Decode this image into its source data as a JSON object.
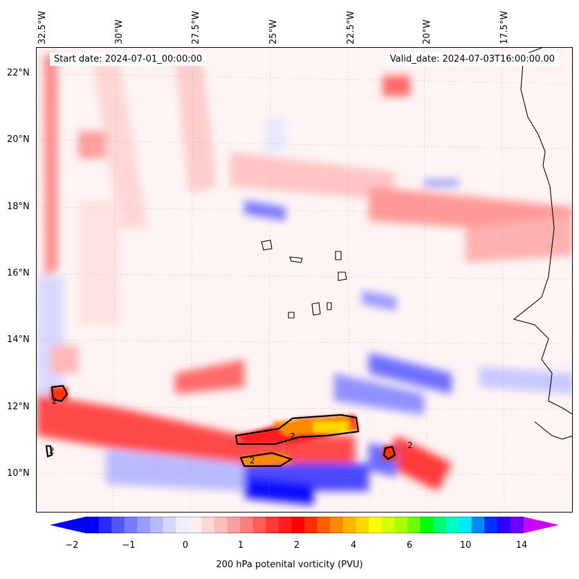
{
  "header": {
    "start_date": "Start date: 2024-07-01_00:00:00",
    "valid_date": "Valid_date: 2024-07-03T16:00:00.00"
  },
  "axes": {
    "lon_labels": [
      "32.5°W",
      "30°W",
      "27.5°W",
      "25°W",
      "22.5°W",
      "20°W",
      "17.5°W"
    ],
    "lat_labels": [
      "22°N",
      "20°N",
      "18°N",
      "16°N",
      "14°N",
      "12°N",
      "10°N"
    ]
  },
  "colorbar": {
    "label": "200 hPa potenital vorticity (PVU)",
    "ticks": [
      "−2",
      "−1",
      "0",
      "1",
      "2",
      "4",
      "6",
      "10",
      "14"
    ],
    "colors": [
      "#0000ff",
      "#2b2bff",
      "#5656ff",
      "#7a7aff",
      "#9a9aff",
      "#b9b9ff",
      "#d6d6ff",
      "#eeeeff",
      "#ffeeee",
      "#ffd6d6",
      "#ffbcbc",
      "#ff9e9e",
      "#ff7e7e",
      "#ff5c5c",
      "#ff3a3a",
      "#ff1c1c",
      "#ff0000",
      "#ff3000",
      "#ff6000",
      "#ff8c00",
      "#ffb400",
      "#ffd800",
      "#ffff00",
      "#d8ff00",
      "#a8ff00",
      "#70ff00",
      "#00ff00",
      "#00ff70",
      "#00ffc0",
      "#00e8ff",
      "#0088ff",
      "#0030ff",
      "#3000ff",
      "#7000ff"
    ],
    "min_color": "#0000ff",
    "max_color": "#cc00ff"
  },
  "contour_labels": [
    "2",
    "2",
    "2",
    "2",
    "2"
  ]
}
